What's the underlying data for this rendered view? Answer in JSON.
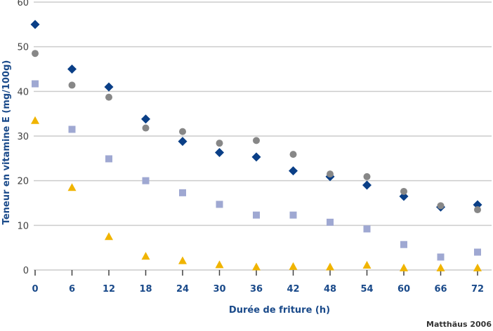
{
  "chart_data": {
    "type": "scatter",
    "title": "",
    "xlabel": "Durée de friture (h)",
    "ylabel": "Teneur en vitamine E (mg/100g)",
    "x": [
      0,
      6,
      12,
      18,
      24,
      30,
      36,
      42,
      48,
      54,
      60,
      66,
      72
    ],
    "x_ticks": [
      "0",
      "6",
      "12",
      "18",
      "24",
      "30",
      "36",
      "42",
      "48",
      "54",
      "60",
      "66",
      "72"
    ],
    "y_ticks": [
      "0",
      "10",
      "20",
      "30",
      "40",
      "50",
      "60"
    ],
    "xlim": [
      0,
      72
    ],
    "ylim": [
      0,
      60
    ],
    "grid": "horizontal",
    "legend": "none",
    "series": [
      {
        "marker": "diamond",
        "color": "#0a3f87",
        "values": [
          55,
          45,
          41,
          33.8,
          28.8,
          26.3,
          25.3,
          22.2,
          20.9,
          19,
          16.5,
          14.1,
          14.6
        ]
      },
      {
        "marker": "circle",
        "color": "#878787",
        "values": [
          48.5,
          41.4,
          38.7,
          31.8,
          31,
          28.4,
          29,
          25.9,
          21.5,
          20.9,
          17.6,
          14.4,
          13.5
        ]
      },
      {
        "marker": "square",
        "color": "#9fa8d2",
        "values": [
          41.7,
          31.5,
          24.9,
          20,
          17.3,
          14.7,
          12.3,
          12.3,
          10.7,
          9.2,
          5.7,
          2.9,
          4
        ]
      },
      {
        "marker": "triangle",
        "color": "#f0b400",
        "values": [
          33.5,
          18.5,
          7.5,
          3.1,
          2.1,
          1.2,
          0.7,
          0.8,
          0.7,
          1.1,
          0.5,
          0.5,
          0.5
        ]
      }
    ],
    "source": "Matthäus 2006"
  }
}
